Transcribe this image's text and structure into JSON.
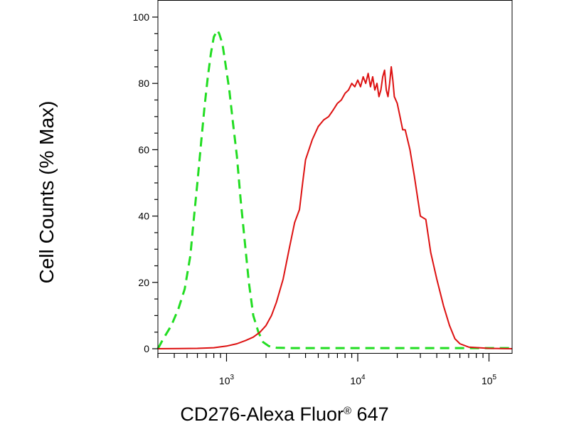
{
  "chart_data": {
    "type": "line",
    "title": "",
    "xlabel": {
      "prefix": "CD276-Alexa Fluor",
      "reg": "®",
      "suffix": " 647"
    },
    "ylabel": "Cell Counts (% Max)",
    "x_scale": "log",
    "xlim": [
      300,
      150000
    ],
    "ylim": [
      0,
      100
    ],
    "y_ticks": [
      0,
      20,
      40,
      60,
      80,
      100
    ],
    "y_tick_labels": [
      "0",
      "20",
      "40",
      "60",
      "80",
      "100"
    ],
    "x_ticks": [
      1000,
      10000,
      100000
    ],
    "x_tick_labels": [
      {
        "base": "10",
        "exp": "3"
      },
      {
        "base": "10",
        "exp": "4"
      },
      {
        "base": "10",
        "exp": "5"
      }
    ],
    "grid": false,
    "series": [
      {
        "color": "#22dd22",
        "style": "dashed",
        "x": [
          300,
          330,
          380,
          430,
          480,
          530,
          560,
          600,
          640,
          680,
          720,
          760,
          800,
          850,
          880,
          930,
          980,
          1050,
          1120,
          1200,
          1280,
          1380,
          1480,
          1600,
          1750,
          1900,
          2100,
          2400,
          3000,
          5000,
          10000,
          20000,
          50000,
          100000,
          150000
        ],
        "y": [
          0,
          3,
          7,
          12,
          18,
          28,
          38,
          50,
          62,
          73,
          82,
          89,
          94,
          96,
          95,
          92,
          86,
          78,
          68,
          58,
          45,
          32,
          20,
          10,
          5,
          2,
          0.8,
          0.3,
          0.2,
          0.2,
          0.2,
          0.2,
          0.2,
          0.2,
          0.2
        ]
      },
      {
        "color": "#dd1111",
        "style": "solid",
        "x": [
          300,
          600,
          800,
          1000,
          1200,
          1400,
          1600,
          1800,
          2000,
          2200,
          2400,
          2700,
          3000,
          3300,
          3600,
          3800,
          4000,
          4500,
          5000,
          5500,
          6000,
          6500,
          7000,
          7500,
          8000,
          8500,
          9000,
          9500,
          10000,
          10500,
          11000,
          11500,
          12000,
          12500,
          13000,
          13500,
          14000,
          14500,
          15000,
          15500,
          16000,
          16500,
          17000,
          17500,
          18000,
          18500,
          19000,
          20000,
          21000,
          22000,
          23000,
          25000,
          27000,
          30000,
          33000,
          36000,
          40000,
          45000,
          50000,
          55000,
          60000,
          70000,
          100000,
          150000
        ],
        "y": [
          0,
          0.1,
          0.3,
          0.8,
          1.5,
          2.5,
          3.5,
          5,
          7,
          10,
          14,
          21,
          30,
          38,
          42,
          50,
          57,
          63,
          67,
          69,
          70,
          72,
          74,
          75,
          77,
          78,
          80,
          79,
          81,
          79,
          82,
          80,
          83,
          79,
          82,
          78,
          80,
          76,
          78,
          82,
          84,
          78,
          76,
          80,
          85,
          81,
          76,
          74,
          70,
          66,
          66,
          60,
          52,
          40,
          39,
          29,
          21,
          13,
          7,
          3,
          1.5,
          0.5,
          0.1,
          0
        ]
      }
    ]
  }
}
